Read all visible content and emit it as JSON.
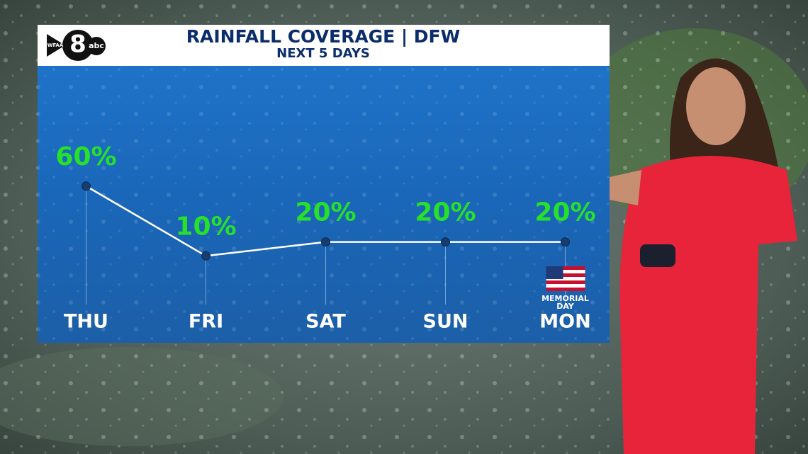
{
  "chart_data": {
    "type": "line",
    "title": "RAINFALL COVERAGE | DFW",
    "subtitle": "NEXT 5 DAYS",
    "logo": [
      "WFAA",
      "8",
      "abc"
    ],
    "categories": [
      "THU",
      "FRI",
      "SAT",
      "SUN",
      "MON"
    ],
    "values": [
      60,
      10,
      20,
      20,
      20
    ],
    "value_labels": [
      "60%",
      "10%",
      "20%",
      "20%",
      "20%"
    ],
    "annotation": {
      "category": "MON",
      "text": "MEMORIAL DAY"
    },
    "color": "#ffffff",
    "label_color": "#27e02a"
  }
}
